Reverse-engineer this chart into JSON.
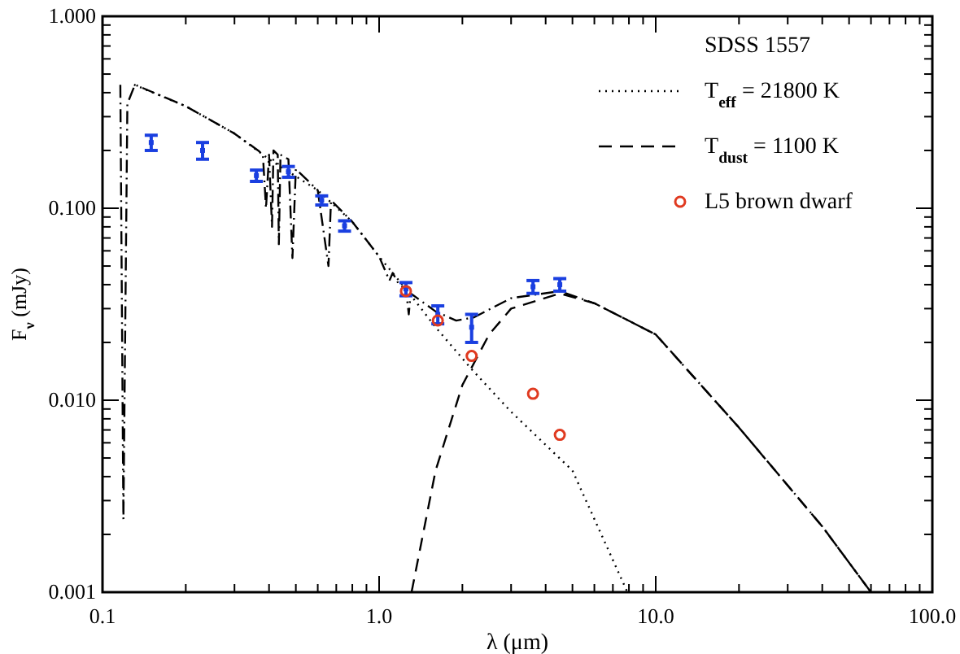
{
  "chart_data": {
    "type": "line",
    "xlabel": "λ (μm)",
    "ylabel": "F$_{ν}$ (mJy)",
    "legend_title": "SDSS 1557",
    "legend": "top right",
    "log": "xy",
    "xlim": [
      0.1,
      100
    ],
    "ylim": [
      0.001,
      1
    ],
    "xticks": [
      {
        "value": 0.1,
        "label": "0.1"
      },
      {
        "value": 0.2,
        "label": null
      },
      {
        "value": 0.3,
        "label": null
      },
      {
        "value": 0.4,
        "label": null
      },
      {
        "value": 0.5,
        "label": null
      },
      {
        "value": 0.6,
        "label": null
      },
      {
        "value": 0.7,
        "label": null
      },
      {
        "value": 0.8,
        "label": null
      },
      {
        "value": 0.9,
        "label": null
      },
      {
        "value": 1,
        "label": "1.0"
      },
      {
        "value": 2,
        "label": null
      },
      {
        "value": 3,
        "label": null
      },
      {
        "value": 4,
        "label": null
      },
      {
        "value": 5,
        "label": null
      },
      {
        "value": 6,
        "label": null
      },
      {
        "value": 7,
        "label": null
      },
      {
        "value": 8,
        "label": null
      },
      {
        "value": 9,
        "label": null
      },
      {
        "value": 10,
        "label": "10.0"
      },
      {
        "value": 20,
        "label": null
      },
      {
        "value": 30,
        "label": null
      },
      {
        "value": 40,
        "label": null
      },
      {
        "value": 50,
        "label": null
      },
      {
        "value": 60,
        "label": null
      },
      {
        "value": 70,
        "label": null
      },
      {
        "value": 80,
        "label": null
      },
      {
        "value": 90,
        "label": null
      },
      {
        "value": 100,
        "label": "100.0"
      }
    ],
    "yticks": [
      {
        "value": 0.001,
        "label": "0.001"
      },
      {
        "value": 0.002,
        "label": null
      },
      {
        "value": 0.003,
        "label": null
      },
      {
        "value": 0.004,
        "label": null
      },
      {
        "value": 0.005,
        "label": null
      },
      {
        "value": 0.006,
        "label": null
      },
      {
        "value": 0.007,
        "label": null
      },
      {
        "value": 0.008,
        "label": null
      },
      {
        "value": 0.009,
        "label": null
      },
      {
        "value": 0.01,
        "label": "0.010"
      },
      {
        "value": 0.02,
        "label": null
      },
      {
        "value": 0.03,
        "label": null
      },
      {
        "value": 0.04,
        "label": null
      },
      {
        "value": 0.05,
        "label": null
      },
      {
        "value": 0.06,
        "label": null
      },
      {
        "value": 0.07,
        "label": null
      },
      {
        "value": 0.08,
        "label": null
      },
      {
        "value": 0.09,
        "label": null
      },
      {
        "value": 0.1,
        "label": "0.100"
      },
      {
        "value": 0.2,
        "label": null
      },
      {
        "value": 0.3,
        "label": null
      },
      {
        "value": 0.4,
        "label": null
      },
      {
        "value": 0.5,
        "label": null
      },
      {
        "value": 0.6,
        "label": null
      },
      {
        "value": 0.7,
        "label": null
      },
      {
        "value": 0.8,
        "label": null
      },
      {
        "value": 0.9,
        "label": null
      },
      {
        "value": 1,
        "label": "1.000"
      }
    ],
    "series": [
      {
        "name": "T$_{eff}$ = 21800 K",
        "line_style": "dotted",
        "color": "#000000",
        "x": [
          0.13,
          0.2,
          0.3,
          0.4,
          0.6,
          0.8,
          1.0,
          1.25,
          1.6,
          2.16,
          3,
          5,
          7.9
        ],
        "values": [
          0.44,
          0.34,
          0.245,
          0.18,
          0.124,
          0.085,
          0.056,
          0.038,
          0.024,
          0.0145,
          0.0087,
          0.0043,
          0.001
        ]
      },
      {
        "name": "T$_{dust}$ = 1100 K",
        "line_style": "dashed",
        "color": "#000000",
        "x": [
          1.31,
          1.6,
          2,
          2.5,
          3,
          4.5,
          6,
          10,
          20,
          40,
          60
        ],
        "values": [
          0.001,
          0.0043,
          0.012,
          0.022,
          0.03,
          0.036,
          0.032,
          0.022,
          0.0072,
          0.0022,
          0.001
        ]
      },
      {
        "line_style": "dashdot",
        "color": "#000000",
        "x": [
          0.116,
          0.119,
          0.123,
          0.131,
          0.2,
          0.3,
          0.365,
          0.38,
          0.39,
          0.4,
          0.41,
          0.415,
          0.43,
          0.434,
          0.44,
          0.47,
          0.486,
          0.5,
          0.6,
          0.656,
          0.67,
          0.8,
          1.0,
          1.09,
          1.12,
          1.18,
          1.25,
          1.28,
          1.3,
          1.6,
          1.9,
          2.2,
          3,
          4.5,
          6,
          10,
          20,
          40,
          60
        ],
        "values": [
          0.44,
          0.0024,
          0.35,
          0.44,
          0.34,
          0.245,
          0.2,
          0.19,
          0.1,
          0.19,
          0.08,
          0.2,
          0.19,
          0.065,
          0.19,
          0.18,
          0.055,
          0.16,
          0.124,
          0.05,
          0.11,
          0.085,
          0.056,
          0.042,
          0.046,
          0.04,
          0.038,
          0.028,
          0.036,
          0.029,
          0.026,
          0.027,
          0.034,
          0.037,
          0.032,
          0.022,
          0.0072,
          0.0022,
          0.001
        ]
      },
      {
        "type": "scatter",
        "marker": "square",
        "color": "#1a3fe0",
        "x": [
          0.15,
          0.23,
          0.36,
          0.47,
          0.62,
          0.75,
          1.25,
          1.63,
          2.16,
          3.6,
          4.5
        ],
        "values": [
          0.22,
          0.2,
          0.148,
          0.155,
          0.11,
          0.081,
          0.038,
          0.028,
          0.024,
          0.039,
          0.04
        ],
        "errors": [
          0.02,
          0.02,
          0.01,
          0.01,
          0.006,
          0.005,
          0.003,
          0.003,
          0.004,
          0.003,
          0.003
        ]
      },
      {
        "name": "L5 brown dwarf",
        "type": "scatter",
        "marker": "circle",
        "color": "#e03a20",
        "x": [
          1.25,
          1.63,
          2.16,
          3.6,
          4.5
        ],
        "values": [
          0.037,
          0.026,
          0.017,
          0.0108,
          0.0066
        ]
      }
    ]
  }
}
